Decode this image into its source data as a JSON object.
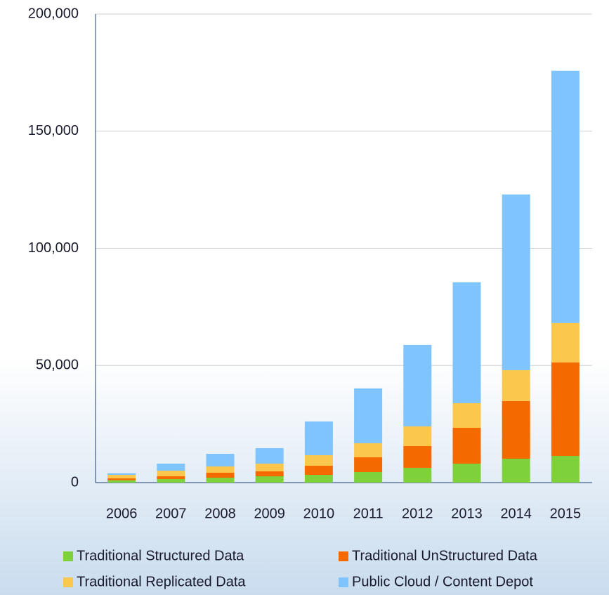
{
  "chart_data": {
    "type": "stacked_bar",
    "categories": [
      "2006",
      "2007",
      "2008",
      "2009",
      "2010",
      "2011",
      "2012",
      "2013",
      "2014",
      "2015"
    ],
    "series": [
      {
        "name": "Traditional Structured Data",
        "color": "#7fd13b",
        "values": [
          1000,
          1500,
          2100,
          2700,
          3300,
          4500,
          6300,
          8100,
          10200,
          11400
        ]
      },
      {
        "name": "Traditional UnStructured Data",
        "color": "#f56a00",
        "values": [
          800,
          1200,
          2100,
          2100,
          3900,
          6300,
          9300,
          15300,
          24600,
          39900
        ]
      },
      {
        "name": "Traditional Replicated Data",
        "color": "#fcc74d",
        "values": [
          1500,
          2400,
          2700,
          3300,
          4500,
          6000,
          8400,
          10500,
          13200,
          16800
        ]
      },
      {
        "name": "Public Cloud / Content Depot",
        "color": "#7fc4fc",
        "values": [
          700,
          3000,
          5400,
          6600,
          14400,
          23400,
          34800,
          51600,
          75000,
          107700
        ]
      }
    ],
    "ylim": [
      0,
      200000
    ],
    "yticks": [
      0,
      {
        "value": 50000,
        "label": "50,000"
      },
      {
        "value": 100000,
        "label": "100,000"
      },
      {
        "value": 150000,
        "label": "150,000"
      },
      {
        "value": 200000,
        "label": "200,000"
      }
    ],
    "grid": true
  }
}
